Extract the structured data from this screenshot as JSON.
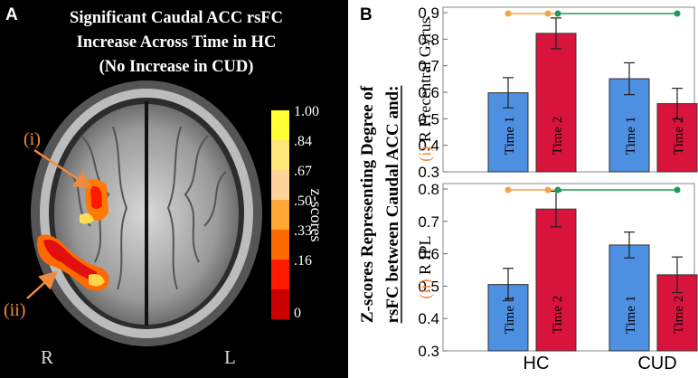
{
  "panel_a": {
    "letter": "A",
    "title_lines": [
      "Significant  Caudal ACC rsFC",
      "Increase Across Time in HC",
      "(No Increase in CUD)"
    ],
    "label_i": "(i)",
    "label_ii": "(ii)",
    "side_right": "R",
    "side_left": "L",
    "colorbar": {
      "title": "z-scores",
      "ticks": [
        "1.00",
        ".84",
        ".67",
        ".50",
        ".33",
        ".16",
        "0"
      ],
      "colors": [
        "#ffff33",
        "#ffe77a",
        "#fdd59a",
        "#ffa733",
        "#ff6a00",
        "#ff1a00",
        "#cc0000"
      ]
    },
    "colors": {
      "arrow": "#f08a3c",
      "label": "#f08a3c"
    }
  },
  "panel_b": {
    "letter": "B"
  },
  "chart_data": {
    "type": "bar",
    "ylabel_lines": [
      "Z-scores Representing Degree of",
      "rsFC between Caudal ACC and:"
    ],
    "groups": [
      "HC",
      "CUD"
    ],
    "series": [
      {
        "name": "Time 1",
        "color": "#4d8fe0"
      },
      {
        "name": "Time 2",
        "color": "#d9143c"
      }
    ],
    "subplots": [
      {
        "prefix": "(i)",
        "ylabel": "R Precentral Gyrus",
        "ylim": [
          0.3,
          0.9
        ],
        "yticks": [
          0.3,
          0.4,
          0.5,
          0.6,
          0.7,
          0.8,
          0.9
        ],
        "ytick_labels": [
          "0.3",
          "0.4",
          "0.5",
          "0.6",
          "0.7",
          "0.8",
          "0.9"
        ],
        "bar_labels": [
          "Time 1",
          "Time 2",
          "Time 1",
          "Time 2"
        ],
        "values": [
          [
            0.598,
            0.822
          ],
          [
            0.651,
            0.557
          ]
        ],
        "errors": [
          [
            0.057,
            0.058
          ],
          [
            0.06,
            0.058
          ]
        ]
      },
      {
        "prefix": "(ii)",
        "ylabel": "R IPL",
        "ylim": [
          0.3,
          0.8
        ],
        "yticks": [
          0.3,
          0.4,
          0.5,
          0.6,
          0.7,
          0.8
        ],
        "ytick_labels": [
          "0.3",
          "0.4",
          "0.5",
          "0.6",
          "0.7",
          "0.8"
        ],
        "bar_labels": [
          "Time 1",
          "Time 2",
          "Time 1",
          "Time 2"
        ],
        "values": [
          [
            0.505,
            0.738
          ],
          [
            0.627,
            0.535
          ]
        ],
        "errors": [
          [
            0.05,
            0.055
          ],
          [
            0.04,
            0.055
          ]
        ]
      }
    ],
    "significance_colors": {
      "hc": "#f4a446",
      "between": "#1e9b5a"
    }
  }
}
